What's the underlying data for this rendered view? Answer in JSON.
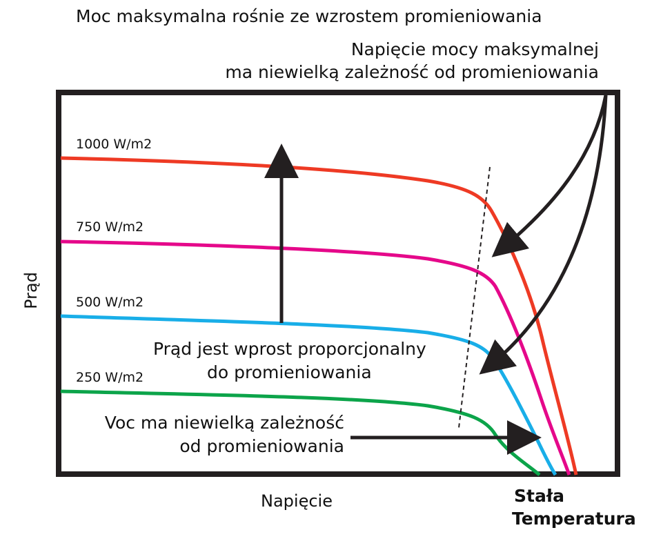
{
  "annotations": {
    "top": "Moc maksymalna rośnie ze wzrostem promieniowania",
    "vmp_line1": "Napięcie mocy maksymalnej",
    "vmp_line2": "ma niewielką zależność od promieniowania",
    "current_line1": "Prąd jest wprost proporcjonalny",
    "current_line2": "do promieniowania",
    "voc_line1": "Voc ma niewielką zależność",
    "voc_line2": "od promieniowania"
  },
  "axes": {
    "x_label": "Napięcie",
    "y_label": "Prąd"
  },
  "condition": {
    "line1": "Stała",
    "line2": "Temperatura"
  },
  "curves": [
    {
      "label": "1000 W/m2",
      "color": "#ee3a24"
    },
    {
      "label": "750 W/m2",
      "color": "#e5088a"
    },
    {
      "label": "500 W/m2",
      "color": "#19aee8"
    },
    {
      "label": "250 W/m2",
      "color": "#0ca44a"
    }
  ]
}
